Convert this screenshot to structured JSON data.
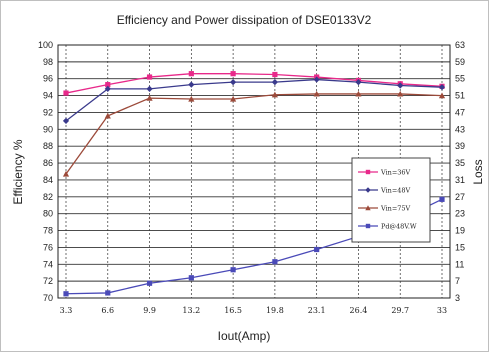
{
  "chart_data": {
    "type": "line",
    "title": "Efficiency and Power dissipation of  DSE0133V2",
    "xlabel": "Iout(Amp)",
    "ylabel": "Efficiency %",
    "y2label": "Loss",
    "x": [
      "3.3",
      "6.6",
      "9.9",
      "13.2",
      "16.5",
      "19.8",
      "23.1",
      "26.4",
      "29.7",
      "33"
    ],
    "ylim": [
      70,
      100
    ],
    "y_ticks": [
      70,
      72,
      74,
      76,
      78,
      80,
      82,
      84,
      86,
      88,
      90,
      92,
      94,
      96,
      98,
      100
    ],
    "y2lim": [
      3,
      63
    ],
    "y2_ticks": [
      3,
      7,
      11,
      15,
      19,
      23,
      27,
      31,
      35,
      39,
      43,
      47,
      51,
      55,
      59,
      63
    ],
    "grid": true,
    "legend_position": "right",
    "series": [
      {
        "name": "Vin=36V",
        "axis": "left",
        "marker": "square",
        "color": "#e8298a",
        "values": [
          94.3,
          95.3,
          96.2,
          96.6,
          96.6,
          96.5,
          96.2,
          95.8,
          95.4,
          95.1
        ]
      },
      {
        "name": "Vin=48V",
        "axis": "left",
        "marker": "diamond",
        "color": "#3a3a8c",
        "values": [
          91.0,
          94.8,
          94.8,
          95.3,
          95.6,
          95.6,
          95.9,
          95.6,
          95.2,
          95.0
        ]
      },
      {
        "name": "Vin=75V",
        "axis": "left",
        "marker": "triangle",
        "color": "#9c4a3a",
        "values": [
          84.7,
          91.6,
          93.7,
          93.6,
          93.6,
          94.1,
          94.2,
          94.2,
          94.2,
          94.0
        ]
      },
      {
        "name": "Pd@48V.W",
        "axis": "right",
        "marker": "square",
        "color": "#4a4ab8",
        "values": [
          4.0,
          4.2,
          6.5,
          7.8,
          9.7,
          11.6,
          14.5,
          17.6,
          21.6,
          26.4
        ]
      }
    ]
  }
}
